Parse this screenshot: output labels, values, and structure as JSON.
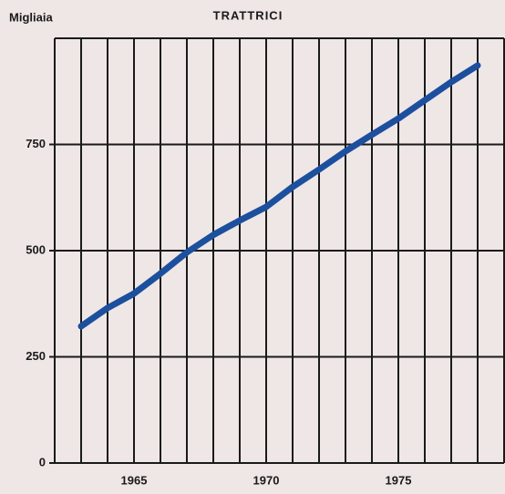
{
  "chart_data": {
    "type": "line",
    "title": "TRATTRICI",
    "y_label": "Migliaia",
    "x": [
      1963,
      1964,
      1965,
      1966,
      1967,
      1968,
      1969,
      1970,
      1971,
      1972,
      1973,
      1974,
      1975,
      1976,
      1977,
      1978
    ],
    "series": [
      {
        "name": "Trattrici",
        "color": "#1c4f9e",
        "values": [
          322,
          365,
          399,
          446,
          496,
          537,
          571,
          603,
          650,
          691,
          734,
          773,
          811,
          854,
          897,
          936
        ]
      }
    ],
    "xlim": [
      1962,
      1979
    ],
    "xticks": [
      1965,
      1970,
      1975
    ],
    "xgrid": [
      1962,
      1963,
      1964,
      1965,
      1966,
      1967,
      1968,
      1969,
      1970,
      1971,
      1972,
      1973,
      1974,
      1975,
      1976,
      1977,
      1978,
      1979
    ],
    "ylim": [
      0,
      1000
    ],
    "yticks": [
      0,
      250,
      500,
      750
    ],
    "grid": true
  }
}
